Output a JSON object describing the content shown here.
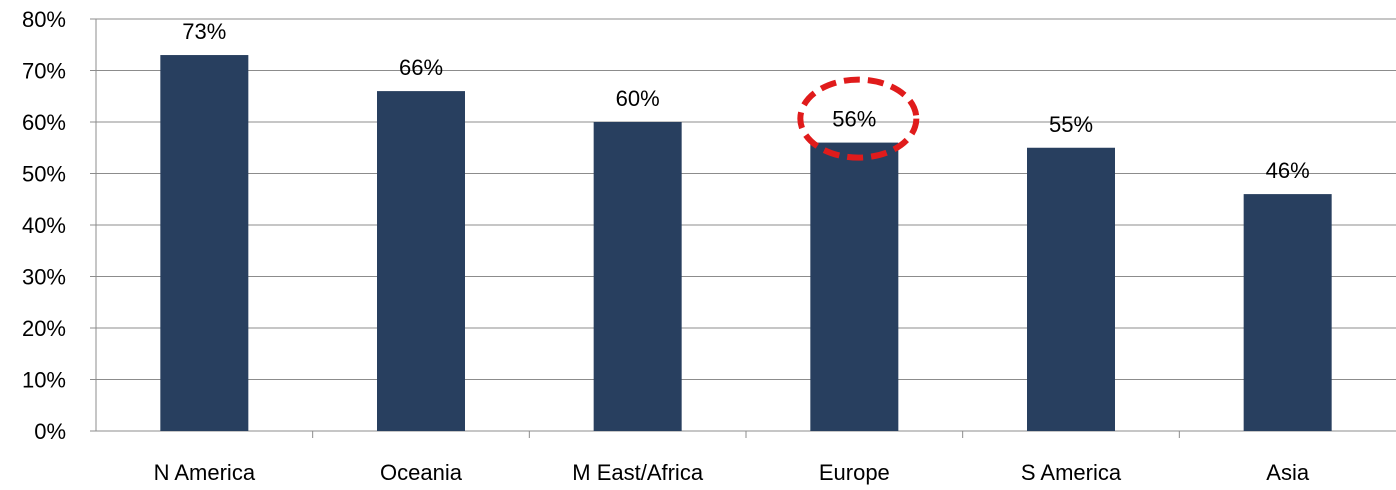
{
  "chart_data": {
    "type": "bar",
    "categories": [
      "N America",
      "Oceania",
      "M East/Africa",
      "Europe",
      "S America",
      "Asia"
    ],
    "values": [
      73,
      66,
      60,
      56,
      55,
      46
    ],
    "data_labels": [
      "73%",
      "66%",
      "60%",
      "56%",
      "55%",
      "46%"
    ],
    "y_ticks": [
      "0%",
      "10%",
      "20%",
      "30%",
      "40%",
      "50%",
      "60%",
      "70%",
      "80%"
    ],
    "ylim": [
      0,
      80
    ],
    "grid": true,
    "highlight_category": "Europe",
    "colors": {
      "bar": "#283f5f",
      "grid": "#8c8c8c",
      "highlight": "#e01b1b"
    }
  }
}
